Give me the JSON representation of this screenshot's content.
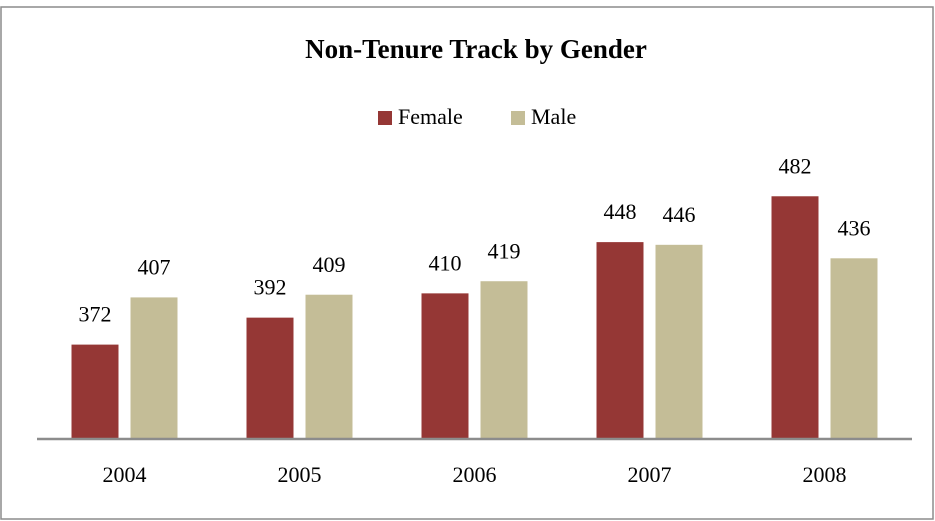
{
  "chart_data": {
    "type": "bar",
    "title": "Non-Tenure Track by Gender",
    "categories": [
      "2004",
      "2005",
      "2006",
      "2007",
      "2008"
    ],
    "series": [
      {
        "name": "Female",
        "color": "#953735",
        "values": [
          372,
          392,
          410,
          448,
          482
        ]
      },
      {
        "name": "Male",
        "color": "#c4bd97",
        "values": [
          407,
          409,
          419,
          446,
          436
        ]
      }
    ],
    "ylim": [
      302,
      500
    ],
    "legend": "top"
  }
}
